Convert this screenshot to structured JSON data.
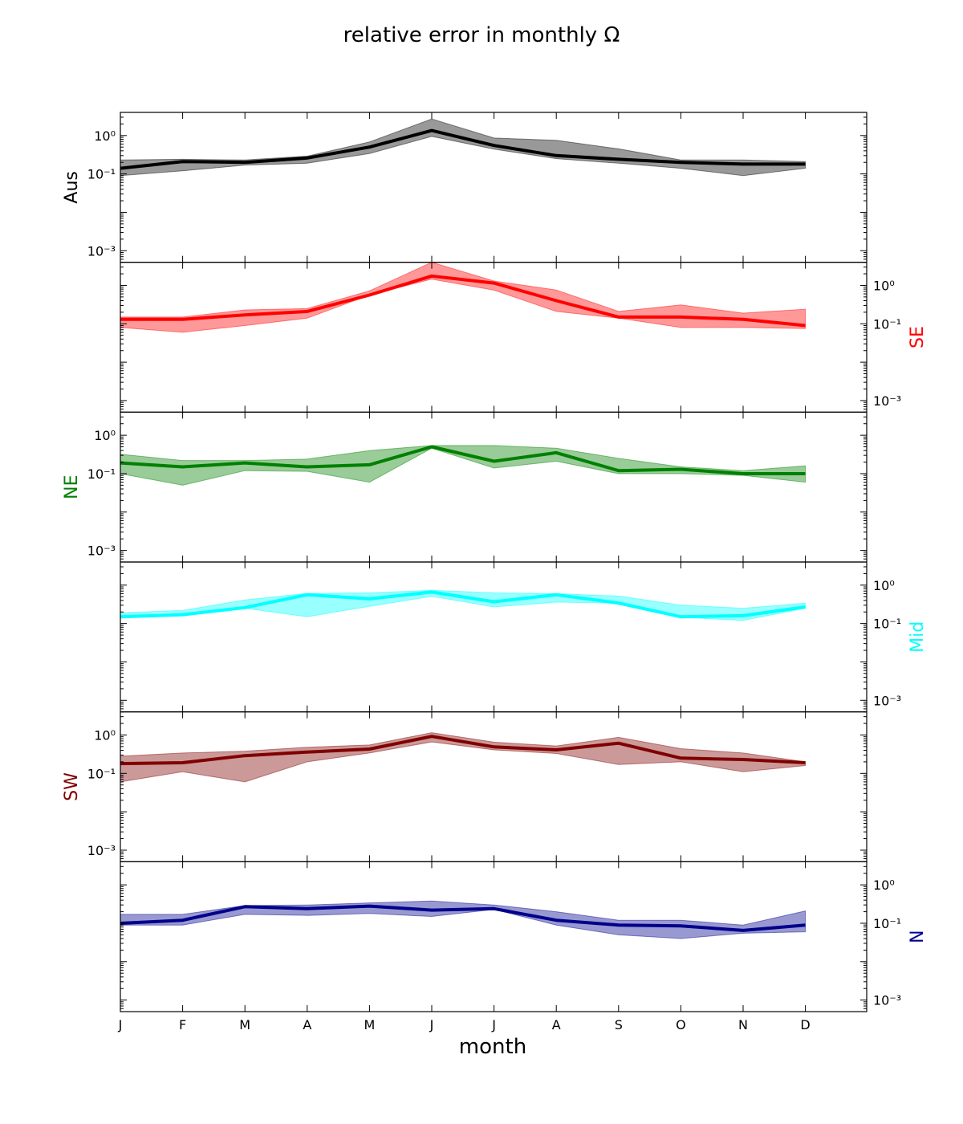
{
  "chart_data": {
    "type": "area",
    "title": "relative error in monthly Ω",
    "xlabel": "month",
    "categories": [
      "J",
      "F",
      "M",
      "A",
      "M",
      "J",
      "J",
      "A",
      "S",
      "O",
      "N",
      "D"
    ],
    "y_scale": "log",
    "ylim": [
      0.0005,
      4
    ],
    "y_ticks": [
      {
        "value": 0.001,
        "label": "10⁻³"
      },
      {
        "value": 0.1,
        "label": "10⁻¹"
      },
      {
        "value": 1,
        "label": "10⁰"
      }
    ],
    "series": [
      {
        "name": "Aus",
        "color": "#000000",
        "fill": "#000000",
        "axis_side": "left",
        "values": [
          0.14,
          0.21,
          0.2,
          0.26,
          0.5,
          1.35,
          0.55,
          0.3,
          0.24,
          0.2,
          0.18,
          0.18
        ],
        "lower": [
          0.09,
          0.12,
          0.17,
          0.19,
          0.34,
          0.95,
          0.44,
          0.25,
          0.19,
          0.14,
          0.09,
          0.14
        ],
        "upper": [
          0.23,
          0.24,
          0.23,
          0.29,
          0.68,
          2.7,
          0.86,
          0.75,
          0.45,
          0.23,
          0.23,
          0.21
        ]
      },
      {
        "name": "SE",
        "color": "#ff0000",
        "fill": "#ff0000",
        "axis_side": "right",
        "values": [
          0.13,
          0.13,
          0.17,
          0.21,
          0.56,
          1.75,
          1.15,
          0.4,
          0.15,
          0.15,
          0.13,
          0.09
        ],
        "lower": [
          0.08,
          0.06,
          0.09,
          0.14,
          0.56,
          1.45,
          0.75,
          0.21,
          0.14,
          0.08,
          0.08,
          0.075
        ],
        "upper": [
          0.15,
          0.15,
          0.23,
          0.25,
          0.72,
          4.0,
          1.3,
          0.76,
          0.21,
          0.31,
          0.19,
          0.24
        ]
      },
      {
        "name": "NE",
        "color": "#008000",
        "fill": "#008000",
        "axis_side": "left",
        "values": [
          0.19,
          0.15,
          0.19,
          0.15,
          0.17,
          0.5,
          0.21,
          0.35,
          0.12,
          0.13,
          0.1,
          0.1
        ],
        "lower": [
          0.1,
          0.05,
          0.12,
          0.115,
          0.06,
          0.46,
          0.14,
          0.21,
          0.1,
          0.1,
          0.09,
          0.06
        ],
        "upper": [
          0.32,
          0.22,
          0.22,
          0.24,
          0.4,
          0.54,
          0.54,
          0.46,
          0.25,
          0.15,
          0.12,
          0.16
        ]
      },
      {
        "name": "Mid",
        "color": "#00ffff",
        "fill": "#00ffff",
        "axis_side": "right",
        "values": [
          0.15,
          0.17,
          0.26,
          0.56,
          0.44,
          0.66,
          0.37,
          0.56,
          0.34,
          0.15,
          0.16,
          0.27
        ],
        "lower": [
          0.14,
          0.16,
          0.25,
          0.15,
          0.28,
          0.51,
          0.27,
          0.36,
          0.34,
          0.145,
          0.12,
          0.25
        ],
        "upper": [
          0.19,
          0.22,
          0.41,
          0.61,
          0.63,
          0.73,
          0.63,
          0.6,
          0.52,
          0.3,
          0.25,
          0.34
        ]
      },
      {
        "name": "SW",
        "color": "#800000",
        "fill": "#800000",
        "axis_side": "left",
        "values": [
          0.18,
          0.19,
          0.29,
          0.36,
          0.43,
          0.92,
          0.49,
          0.41,
          0.61,
          0.25,
          0.23,
          0.19
        ],
        "lower": [
          0.06,
          0.11,
          0.06,
          0.2,
          0.34,
          0.66,
          0.41,
          0.33,
          0.17,
          0.2,
          0.11,
          0.16
        ],
        "upper": [
          0.28,
          0.34,
          0.38,
          0.48,
          0.55,
          1.15,
          0.65,
          0.52,
          0.87,
          0.44,
          0.34,
          0.2
        ]
      },
      {
        "name": "N",
        "color": "#00008b",
        "fill": "#00008b",
        "axis_side": "right",
        "values": [
          0.1,
          0.12,
          0.27,
          0.24,
          0.28,
          0.22,
          0.24,
          0.12,
          0.09,
          0.085,
          0.065,
          0.09
        ],
        "lower": [
          0.09,
          0.09,
          0.17,
          0.16,
          0.18,
          0.15,
          0.23,
          0.09,
          0.05,
          0.04,
          0.055,
          0.06
        ],
        "upper": [
          0.17,
          0.17,
          0.29,
          0.3,
          0.34,
          0.38,
          0.3,
          0.2,
          0.12,
          0.12,
          0.09,
          0.21
        ]
      }
    ]
  }
}
